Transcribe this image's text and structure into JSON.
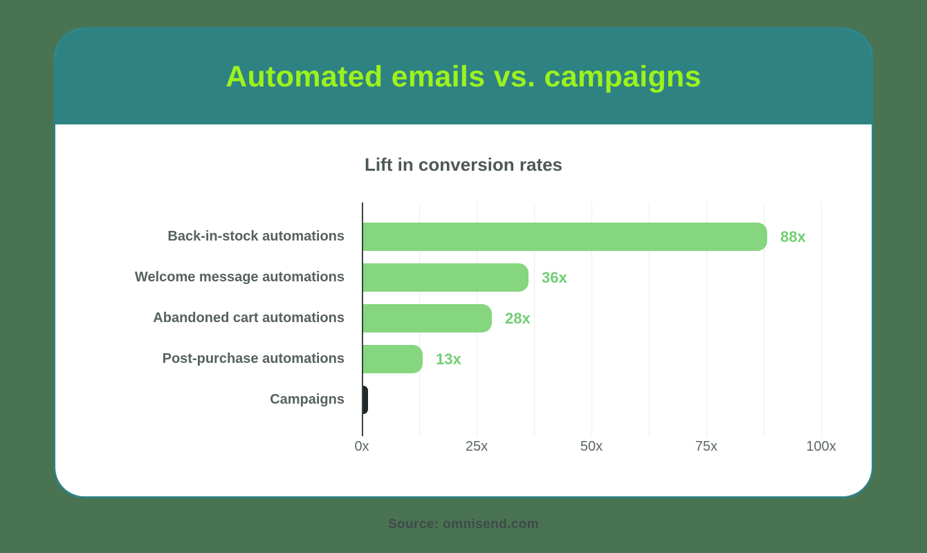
{
  "header": {
    "title": "Automated emails vs. campaigns"
  },
  "chart_data": {
    "type": "bar",
    "orientation": "horizontal",
    "title": "Lift in conversion rates",
    "categories": [
      "Back-in-stock automations",
      "Welcome message automations",
      "Abandoned cart automations",
      "Post-purchase automations",
      "Campaigns"
    ],
    "values": [
      88,
      36,
      28,
      13,
      1
    ],
    "value_labels": [
      "88x",
      "36x",
      "28x",
      "13x",
      ""
    ],
    "bar_colors": [
      "#85D67F",
      "#85D67F",
      "#85D67F",
      "#85D67F",
      "#21272A"
    ],
    "xlim": [
      0,
      100
    ],
    "x_ticks": {
      "values": [
        0,
        25,
        50,
        75,
        100
      ],
      "labels": [
        "0x",
        "25x",
        "50x",
        "75x",
        "100x"
      ]
    },
    "minor_grid_step": 12.5,
    "grid": true,
    "legend": false,
    "xlabel": "",
    "ylabel": ""
  },
  "footer": {
    "source": "Source: omnisend.com"
  },
  "theme": {
    "background": "#4A7352",
    "header_band": "#2E8282",
    "header_title": "#9CF21D",
    "card": "#FFFFFF",
    "text_dark": "#4D5857",
    "label_text": "#566160",
    "tick_text": "#5C6665",
    "value_text": "#72CE74",
    "grid": "#ECEDED",
    "axis": "#3A423F",
    "source_text": "#3E4A4B"
  }
}
